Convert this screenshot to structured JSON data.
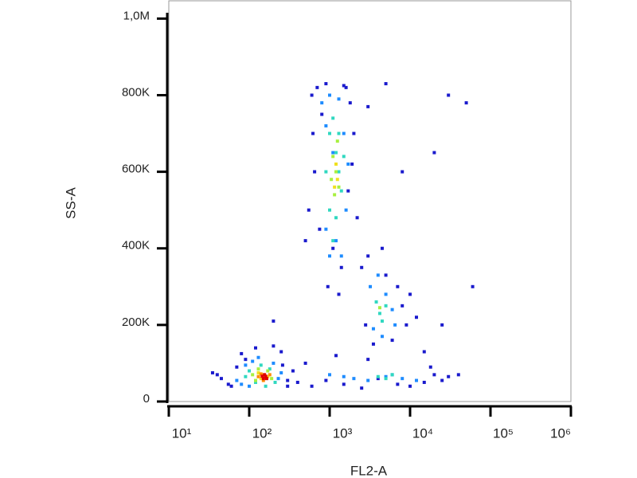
{
  "chart_data": {
    "type": "scatter",
    "xlabel": "FL2-A",
    "ylabel": "SS-A",
    "xscale": "log",
    "xlim": [
      10,
      1000000
    ],
    "xticks": [
      {
        "value": 10,
        "label": "10¹"
      },
      {
        "value": 100,
        "label": "10²"
      },
      {
        "value": 1000,
        "label": "10³"
      },
      {
        "value": 10000,
        "label": "10⁴"
      },
      {
        "value": 100000,
        "label": "10⁵"
      },
      {
        "value": 1000000,
        "label": "10⁶"
      }
    ],
    "ylim": [
      0,
      1048576
    ],
    "yticks": [
      0,
      {
        "value": 200000,
        "label": "200K"
      },
      {
        "value": 400000,
        "label": "400K"
      },
      {
        "value": 600000,
        "label": "600K"
      },
      {
        "value": 800000,
        "label": "800K"
      },
      {
        "value": 1000000,
        "label": "1,0M"
      }
    ],
    "series": [
      {
        "color": "#1a1acd",
        "x": [
          40,
          55,
          70,
          90,
          260,
          300,
          250,
          60,
          45,
          80,
          350,
          120,
          200,
          35,
          300,
          600,
          700,
          900,
          1500,
          1800,
          2000,
          800,
          650,
          1700,
          1100,
          1400,
          750,
          550,
          2200,
          950,
          1300,
          1900,
          500,
          620,
          1600,
          2500,
          3000,
          5000,
          7000,
          8000,
          9000,
          6000,
          3500,
          10000,
          2800,
          4500,
          12000,
          400,
          600,
          900,
          1500,
          2500,
          4000,
          7000,
          10000,
          15000,
          20000,
          25000,
          30000,
          500,
          1200,
          3000,
          18000,
          30000,
          50000,
          60000,
          20000,
          5000,
          3000,
          200,
          25000,
          15000,
          8000,
          40000
        ],
        "y": [
          70000,
          45000,
          90000,
          110000,
          95000,
          55000,
          130000,
          40000,
          60000,
          125000,
          80000,
          140000,
          145000,
          75000,
          40000,
          800000,
          820000,
          830000,
          825000,
          780000,
          700000,
          750000,
          600000,
          550000,
          400000,
          350000,
          450000,
          500000,
          480000,
          300000,
          280000,
          620000,
          420000,
          700000,
          820000,
          350000,
          380000,
          330000,
          300000,
          250000,
          200000,
          160000,
          150000,
          280000,
          200000,
          400000,
          220000,
          50000,
          40000,
          55000,
          45000,
          35000,
          60000,
          45000,
          40000,
          50000,
          70000,
          55000,
          65000,
          100000,
          120000,
          110000,
          90000,
          800000,
          780000,
          300000,
          650000,
          830000,
          770000,
          210000,
          200000,
          130000,
          600000,
          70000
        ]
      },
      {
        "color": "#1e8cff",
        "x": [
          70,
          90,
          110,
          200,
          230,
          80,
          100,
          250,
          130,
          800,
          900,
          1000,
          1100,
          1300,
          1500,
          1600,
          1200,
          1000,
          900,
          1400,
          1700,
          3200,
          4000,
          5000,
          6000,
          3500,
          4500,
          6500,
          1000,
          2000,
          3000,
          5000,
          8000,
          12000,
          1500,
          6000
        ],
        "y": [
          55000,
          95000,
          105000,
          100000,
          60000,
          45000,
          40000,
          75000,
          115000,
          780000,
          720000,
          800000,
          650000,
          790000,
          700000,
          500000,
          420000,
          380000,
          450000,
          380000,
          620000,
          300000,
          330000,
          280000,
          240000,
          190000,
          170000,
          200000,
          70000,
          60000,
          55000,
          65000,
          60000,
          55000,
          65000,
          70000
        ]
      },
      {
        "color": "#30d8c0",
        "x": [
          100,
          120,
          140,
          180,
          210,
          160,
          90,
          1000,
          1100,
          1200,
          1300,
          1400,
          900,
          1000,
          1200,
          1500,
          1100,
          1300,
          3800,
          4200,
          5000,
          4500,
          4000,
          5000,
          6000
        ],
        "y": [
          80000,
          50000,
          95000,
          85000,
          50000,
          40000,
          65000,
          700000,
          740000,
          650000,
          600000,
          550000,
          600000,
          500000,
          480000,
          640000,
          420000,
          700000,
          260000,
          230000,
          250000,
          210000,
          65000,
          60000,
          70000
        ]
      },
      {
        "color": "#a8f040",
        "x": [
          110,
          130,
          170,
          190,
          120,
          1100,
          1200,
          1300,
          1150,
          1250,
          1050,
          4200
        ],
        "y": [
          70000,
          85000,
          80000,
          60000,
          55000,
          640000,
          600000,
          560000,
          540000,
          680000,
          580000,
          245000
        ]
      },
      {
        "color": "#f0e020",
        "x": [
          130,
          150,
          170,
          140,
          1200,
          1250,
          1150
        ],
        "y": [
          75000,
          70000,
          65000,
          60000,
          620000,
          580000,
          560000
        ]
      },
      {
        "color": "#ff8c00",
        "x": [
          140,
          160,
          180,
          150,
          130
        ],
        "y": [
          72000,
          62000,
          70000,
          55000,
          65000
        ]
      },
      {
        "color": "#e00000",
        "x": [
          145,
          155,
          165,
          150,
          160
        ],
        "y": [
          66000,
          70000,
          60000,
          60000,
          66000
        ]
      }
    ]
  }
}
